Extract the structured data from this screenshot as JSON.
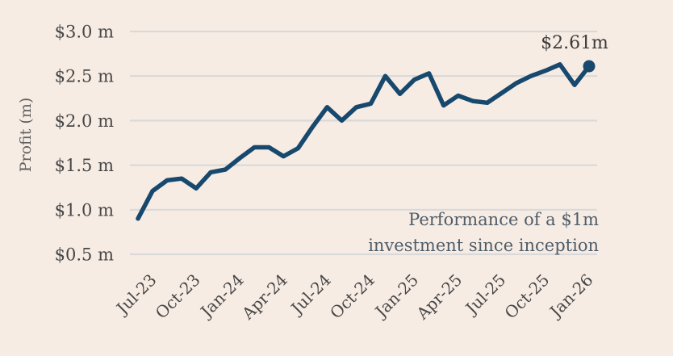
{
  "chart_data": {
    "type": "line",
    "title": "",
    "note_lines": [
      "Performance of a $1m",
      "investment since inception"
    ],
    "ylabel": "Profit (m)",
    "xlabel": "",
    "legend": "none",
    "grid": "horizontal",
    "ylim": [
      0.5,
      3.0
    ],
    "months": [
      "Jun-23",
      "Jul-23",
      "Aug-23",
      "Sep-23",
      "Oct-23",
      "Nov-23",
      "Dec-23",
      "Jan-24",
      "Feb-24",
      "Mar-24",
      "Apr-24",
      "May-24",
      "Jun-24",
      "Jul-24",
      "Aug-24",
      "Sep-24",
      "Oct-24",
      "Nov-24",
      "Dec-24",
      "Jan-25",
      "Feb-25",
      "Mar-25",
      "Apr-25",
      "May-25",
      "Jun-25",
      "Jul-25",
      "Aug-25",
      "Sep-25",
      "Oct-25",
      "Nov-25",
      "Dec-25",
      "Jan-26"
    ],
    "values": [
      0.9,
      1.21,
      1.33,
      1.35,
      1.24,
      1.42,
      1.45,
      1.58,
      1.7,
      1.7,
      1.6,
      1.69,
      1.93,
      2.15,
      2.0,
      2.15,
      2.19,
      2.5,
      2.3,
      2.46,
      2.53,
      2.17,
      2.28,
      2.22,
      2.2,
      2.31,
      2.42,
      2.5,
      2.56,
      2.63,
      2.4,
      2.61
    ],
    "x_tick_labels": [
      "Jul-23",
      "Oct-23",
      "Jan-24",
      "Apr-24",
      "Jul-24",
      "Oct-24",
      "Jan-25",
      "Apr-25",
      "Jul-25",
      "Oct-25",
      "Jan-26"
    ],
    "y_ticks": [
      {
        "value": 3.0,
        "label": "$3.0 m"
      },
      {
        "value": 2.5,
        "label": "$2.5 m"
      },
      {
        "value": 2.0,
        "label": "$2.0 m"
      },
      {
        "value": 1.5,
        "label": "$1.5 m"
      },
      {
        "value": 1.0,
        "label": "$1.0 m"
      },
      {
        "value": 0.5,
        "label": "$0.5 m"
      }
    ],
    "annotation": {
      "text": "$2.61m",
      "month": "Jan-26",
      "value": 2.61
    },
    "last_point_marker": "filled-circle",
    "colors": {
      "background": "#f7ece4",
      "line": "#17486d",
      "gridline": "#d9d9d9",
      "tick_text": "#474747",
      "axis_title_text": "#606060",
      "note_text": "#4e5d6a",
      "annotation_text": "#3b3b3b"
    }
  }
}
